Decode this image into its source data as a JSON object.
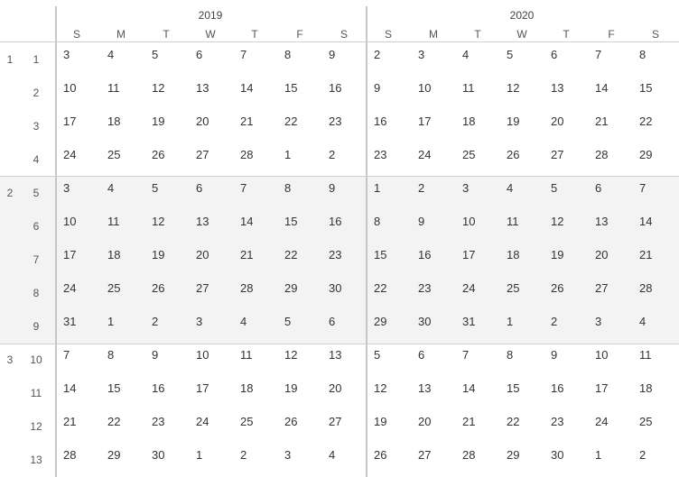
{
  "calendar": {
    "years": [
      "2019",
      "2020"
    ],
    "day_headers": [
      "S",
      "M",
      "T",
      "W",
      "T",
      "F",
      "S"
    ],
    "months": [
      "1",
      "2",
      "3"
    ],
    "weeks": [
      "1",
      "2",
      "3",
      "4",
      "5",
      "6",
      "7",
      "8",
      "9",
      "10",
      "11",
      "12",
      "13"
    ],
    "days_2019": [
      [
        "3",
        "4",
        "5",
        "6",
        "7",
        "8",
        "9"
      ],
      [
        "10",
        "11",
        "12",
        "13",
        "14",
        "15",
        "16"
      ],
      [
        "17",
        "18",
        "19",
        "20",
        "21",
        "22",
        "23"
      ],
      [
        "24",
        "25",
        "26",
        "27",
        "28",
        "1",
        "2"
      ],
      [
        "3",
        "4",
        "5",
        "6",
        "7",
        "8",
        "9"
      ],
      [
        "10",
        "11",
        "12",
        "13",
        "14",
        "15",
        "16"
      ],
      [
        "17",
        "18",
        "19",
        "20",
        "21",
        "22",
        "23"
      ],
      [
        "24",
        "25",
        "26",
        "27",
        "28",
        "29",
        "30"
      ],
      [
        "31",
        "1",
        "2",
        "3",
        "4",
        "5",
        "6"
      ],
      [
        "7",
        "8",
        "9",
        "10",
        "11",
        "12",
        "13"
      ],
      [
        "14",
        "15",
        "16",
        "17",
        "18",
        "19",
        "20"
      ],
      [
        "21",
        "22",
        "23",
        "24",
        "25",
        "26",
        "27"
      ],
      [
        "28",
        "29",
        "30",
        "1",
        "2",
        "3",
        "4"
      ]
    ],
    "days_2020": [
      [
        "2",
        "3",
        "4",
        "5",
        "6",
        "7",
        "8"
      ],
      [
        "9",
        "10",
        "11",
        "12",
        "13",
        "14",
        "15"
      ],
      [
        "16",
        "17",
        "18",
        "19",
        "20",
        "21",
        "22"
      ],
      [
        "23",
        "24",
        "25",
        "26",
        "27",
        "28",
        "29"
      ],
      [
        "1",
        "2",
        "3",
        "4",
        "5",
        "6",
        "7"
      ],
      [
        "8",
        "9",
        "10",
        "11",
        "12",
        "13",
        "14"
      ],
      [
        "15",
        "16",
        "17",
        "18",
        "19",
        "20",
        "21"
      ],
      [
        "22",
        "23",
        "24",
        "25",
        "26",
        "27",
        "28"
      ],
      [
        "29",
        "30",
        "31",
        "1",
        "2",
        "3",
        "4"
      ],
      [
        "5",
        "6",
        "7",
        "8",
        "9",
        "10",
        "11"
      ],
      [
        "12",
        "13",
        "14",
        "15",
        "16",
        "17",
        "18"
      ],
      [
        "19",
        "20",
        "21",
        "22",
        "23",
        "24",
        "25"
      ],
      [
        "26",
        "27",
        "28",
        "29",
        "30",
        "1",
        "2"
      ]
    ]
  }
}
